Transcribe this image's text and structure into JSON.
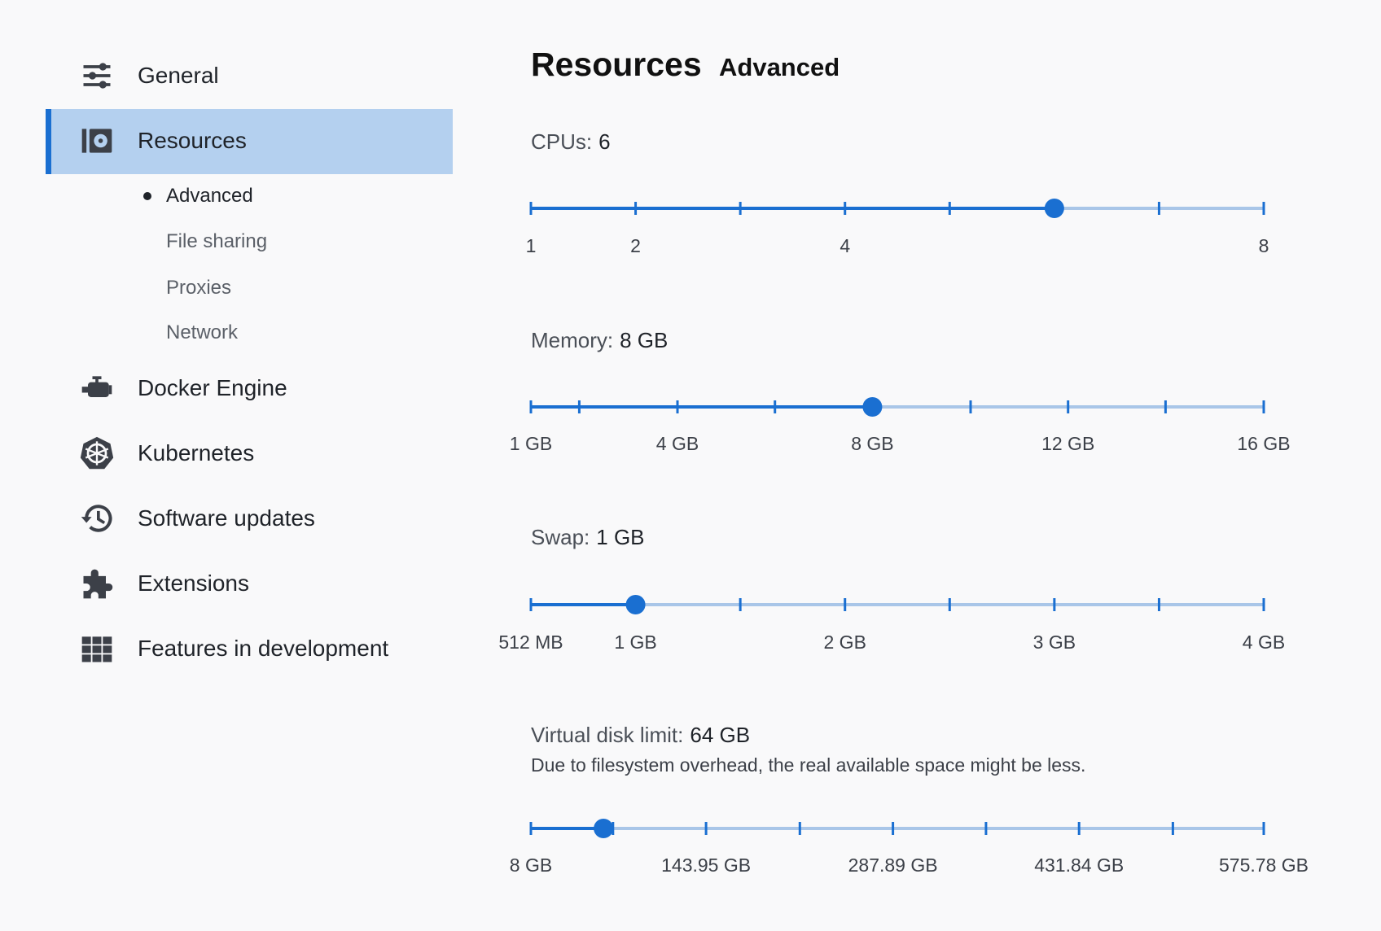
{
  "sidebar": {
    "items": [
      "General",
      "Resources",
      "Docker Engine",
      "Kubernetes",
      "Software updates",
      "Extensions",
      "Features in development"
    ],
    "subitems": [
      "Advanced",
      "File sharing",
      "Proxies",
      "Network"
    ]
  },
  "header": {
    "title": "Resources",
    "tab": "Advanced"
  },
  "sliders": [
    {
      "label": "CPUs:",
      "value": "6",
      "ticks": [
        "1",
        "2",
        "4",
        "8"
      ]
    },
    {
      "label": "Memory:",
      "value": "8 GB",
      "ticks": [
        "1 GB",
        "4 GB",
        "8 GB",
        "12 GB",
        "16 GB"
      ]
    },
    {
      "label": "Swap:",
      "value": "1 GB",
      "ticks": [
        "512 MB",
        "1 GB",
        "2 GB",
        "3 GB",
        "4 GB"
      ]
    },
    {
      "label": "Virtual disk limit:",
      "value": "64 GB",
      "note": "Due to filesystem overhead, the real available space might be less.",
      "ticks": [
        "8 GB",
        "143.95 GB",
        "287.89 GB",
        "431.84 GB",
        "575.78 GB"
      ]
    }
  ]
}
